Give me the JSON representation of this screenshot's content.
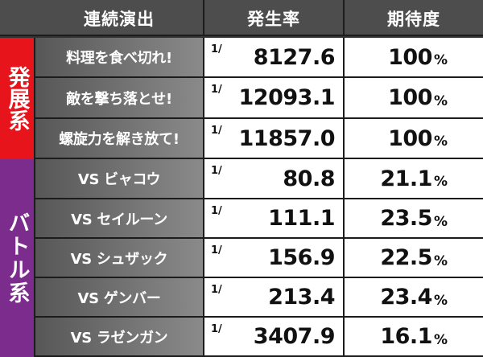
{
  "header": {
    "performance": "連続演出",
    "rate": "発生率",
    "expectation": "期待度"
  },
  "groups": [
    {
      "label": "発展系",
      "color": "#e8141b"
    },
    {
      "label": "バトル系",
      "color": "#7b2c8c"
    }
  ],
  "rows": [
    {
      "name": "料理を食べ切れ!",
      "denominator_prefix": "1/",
      "rate": "8127.6",
      "expectation": "100",
      "unit": "%"
    },
    {
      "name": "敵を撃ち落とせ!",
      "denominator_prefix": "1/",
      "rate": "12093.1",
      "expectation": "100",
      "unit": "%"
    },
    {
      "name": "螺旋力を解き放て!",
      "denominator_prefix": "1/",
      "rate": "11857.0",
      "expectation": "100",
      "unit": "%"
    },
    {
      "name": "VS ビャコウ",
      "denominator_prefix": "1/",
      "rate": "80.8",
      "expectation": "21.1",
      "unit": "%"
    },
    {
      "name": "VS セイルーン",
      "denominator_prefix": "1/",
      "rate": "111.1",
      "expectation": "23.5",
      "unit": "%"
    },
    {
      "name": "VS シュザック",
      "denominator_prefix": "1/",
      "rate": "156.9",
      "expectation": "22.5",
      "unit": "%"
    },
    {
      "name": "VS ゲンバー",
      "denominator_prefix": "1/",
      "rate": "213.4",
      "expectation": "23.4",
      "unit": "%"
    },
    {
      "name": "VS ラゼンガン",
      "denominator_prefix": "1/",
      "rate": "3407.9",
      "expectation": "16.1",
      "unit": "%"
    }
  ],
  "colors": {
    "header_bg": "#4d4d4d",
    "name_cell_bg_dark": "#575757",
    "name_cell_bg_light": "#8a8a8a",
    "grid_line": "#1c1c1c"
  }
}
